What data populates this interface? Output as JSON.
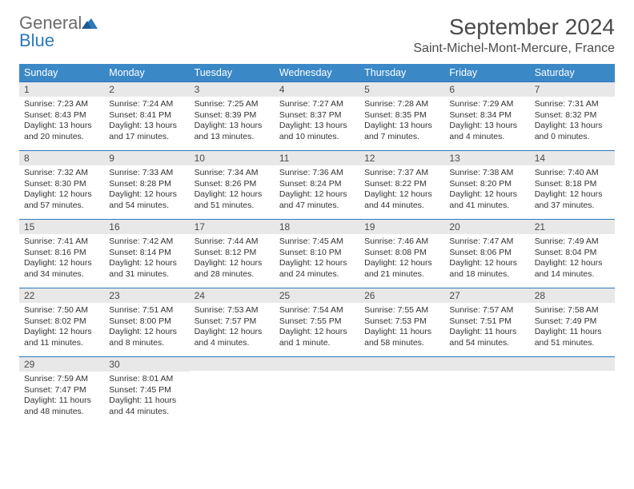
{
  "logo": {
    "word1": "General",
    "word2": "Blue"
  },
  "title": "September 2024",
  "location": "Saint-Michel-Mont-Mercure, France",
  "colors": {
    "header_bg": "#3b88c7",
    "header_text": "#ffffff",
    "daynum_bg": "#e8e8e8",
    "daynum_border": "#2d78bf",
    "logo_gray": "#6b6b6b",
    "logo_blue": "#2d78bf",
    "text": "#333333"
  },
  "weekdays": [
    "Sunday",
    "Monday",
    "Tuesday",
    "Wednesday",
    "Thursday",
    "Friday",
    "Saturday"
  ],
  "labels": {
    "sunrise": "Sunrise:",
    "sunset": "Sunset:",
    "daylight": "Daylight:"
  },
  "days": [
    {
      "n": "1",
      "sunrise": "7:23 AM",
      "sunset": "8:43 PM",
      "dayh": "13 hours",
      "daym": "and 20 minutes."
    },
    {
      "n": "2",
      "sunrise": "7:24 AM",
      "sunset": "8:41 PM",
      "dayh": "13 hours",
      "daym": "and 17 minutes."
    },
    {
      "n": "3",
      "sunrise": "7:25 AM",
      "sunset": "8:39 PM",
      "dayh": "13 hours",
      "daym": "and 13 minutes."
    },
    {
      "n": "4",
      "sunrise": "7:27 AM",
      "sunset": "8:37 PM",
      "dayh": "13 hours",
      "daym": "and 10 minutes."
    },
    {
      "n": "5",
      "sunrise": "7:28 AM",
      "sunset": "8:35 PM",
      "dayh": "13 hours",
      "daym": "and 7 minutes."
    },
    {
      "n": "6",
      "sunrise": "7:29 AM",
      "sunset": "8:34 PM",
      "dayh": "13 hours",
      "daym": "and 4 minutes."
    },
    {
      "n": "7",
      "sunrise": "7:31 AM",
      "sunset": "8:32 PM",
      "dayh": "13 hours",
      "daym": "and 0 minutes."
    },
    {
      "n": "8",
      "sunrise": "7:32 AM",
      "sunset": "8:30 PM",
      "dayh": "12 hours",
      "daym": "and 57 minutes."
    },
    {
      "n": "9",
      "sunrise": "7:33 AM",
      "sunset": "8:28 PM",
      "dayh": "12 hours",
      "daym": "and 54 minutes."
    },
    {
      "n": "10",
      "sunrise": "7:34 AM",
      "sunset": "8:26 PM",
      "dayh": "12 hours",
      "daym": "and 51 minutes."
    },
    {
      "n": "11",
      "sunrise": "7:36 AM",
      "sunset": "8:24 PM",
      "dayh": "12 hours",
      "daym": "and 47 minutes."
    },
    {
      "n": "12",
      "sunrise": "7:37 AM",
      "sunset": "8:22 PM",
      "dayh": "12 hours",
      "daym": "and 44 minutes."
    },
    {
      "n": "13",
      "sunrise": "7:38 AM",
      "sunset": "8:20 PM",
      "dayh": "12 hours",
      "daym": "and 41 minutes."
    },
    {
      "n": "14",
      "sunrise": "7:40 AM",
      "sunset": "8:18 PM",
      "dayh": "12 hours",
      "daym": "and 37 minutes."
    },
    {
      "n": "15",
      "sunrise": "7:41 AM",
      "sunset": "8:16 PM",
      "dayh": "12 hours",
      "daym": "and 34 minutes."
    },
    {
      "n": "16",
      "sunrise": "7:42 AM",
      "sunset": "8:14 PM",
      "dayh": "12 hours",
      "daym": "and 31 minutes."
    },
    {
      "n": "17",
      "sunrise": "7:44 AM",
      "sunset": "8:12 PM",
      "dayh": "12 hours",
      "daym": "and 28 minutes."
    },
    {
      "n": "18",
      "sunrise": "7:45 AM",
      "sunset": "8:10 PM",
      "dayh": "12 hours",
      "daym": "and 24 minutes."
    },
    {
      "n": "19",
      "sunrise": "7:46 AM",
      "sunset": "8:08 PM",
      "dayh": "12 hours",
      "daym": "and 21 minutes."
    },
    {
      "n": "20",
      "sunrise": "7:47 AM",
      "sunset": "8:06 PM",
      "dayh": "12 hours",
      "daym": "and 18 minutes."
    },
    {
      "n": "21",
      "sunrise": "7:49 AM",
      "sunset": "8:04 PM",
      "dayh": "12 hours",
      "daym": "and 14 minutes."
    },
    {
      "n": "22",
      "sunrise": "7:50 AM",
      "sunset": "8:02 PM",
      "dayh": "12 hours",
      "daym": "and 11 minutes."
    },
    {
      "n": "23",
      "sunrise": "7:51 AM",
      "sunset": "8:00 PM",
      "dayh": "12 hours",
      "daym": "and 8 minutes."
    },
    {
      "n": "24",
      "sunrise": "7:53 AM",
      "sunset": "7:57 PM",
      "dayh": "12 hours",
      "daym": "and 4 minutes."
    },
    {
      "n": "25",
      "sunrise": "7:54 AM",
      "sunset": "7:55 PM",
      "dayh": "12 hours",
      "daym": "and 1 minute."
    },
    {
      "n": "26",
      "sunrise": "7:55 AM",
      "sunset": "7:53 PM",
      "dayh": "11 hours",
      "daym": "and 58 minutes."
    },
    {
      "n": "27",
      "sunrise": "7:57 AM",
      "sunset": "7:51 PM",
      "dayh": "11 hours",
      "daym": "and 54 minutes."
    },
    {
      "n": "28",
      "sunrise": "7:58 AM",
      "sunset": "7:49 PM",
      "dayh": "11 hours",
      "daym": "and 51 minutes."
    },
    {
      "n": "29",
      "sunrise": "7:59 AM",
      "sunset": "7:47 PM",
      "dayh": "11 hours",
      "daym": "and 48 minutes."
    },
    {
      "n": "30",
      "sunrise": "8:01 AM",
      "sunset": "7:45 PM",
      "dayh": "11 hours",
      "daym": "and 44 minutes."
    }
  ]
}
